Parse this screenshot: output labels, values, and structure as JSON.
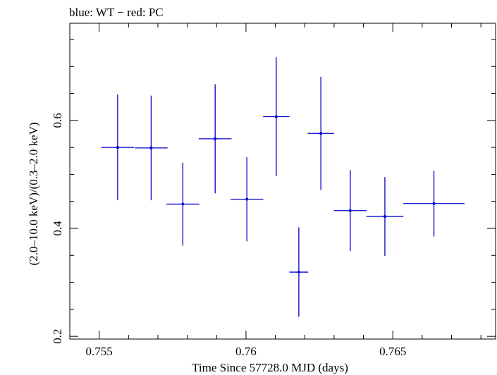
{
  "chart_data": {
    "type": "scatter",
    "title": "blue: WT − red: PC",
    "xlabel": "Time Since 57728.0 MJD (days)",
    "ylabel": "(2.0–10.0 keV)/(0.3–2.0 keV)",
    "xlim": [
      0.754,
      0.7685
    ],
    "ylim": [
      0.195,
      0.78
    ],
    "x_ticks": [
      0.755,
      0.76,
      0.765
    ],
    "x_tick_labels": [
      "0.755",
      "0.76",
      "0.765"
    ],
    "y_ticks": [
      0.2,
      0.4,
      0.6
    ],
    "y_tick_labels": [
      "0.2",
      "0.4",
      "0.6"
    ],
    "grid": false,
    "series": [
      {
        "color": "#0000cc",
        "points": [
          {
            "x": 0.75563,
            "y": 0.55,
            "xerr": 0.00056,
            "yerr_low": 0.098,
            "yerr_high": 0.098
          },
          {
            "x": 0.75677,
            "y": 0.549,
            "xerr": 0.00056,
            "yerr_low": 0.097,
            "yerr_high": 0.097
          },
          {
            "x": 0.75785,
            "y": 0.445,
            "xerr": 0.00056,
            "yerr_low": 0.077,
            "yerr_high": 0.077
          },
          {
            "x": 0.75895,
            "y": 0.566,
            "xerr": 0.00056,
            "yerr_low": 0.101,
            "yerr_high": 0.101
          },
          {
            "x": 0.76003,
            "y": 0.454,
            "xerr": 0.00056,
            "yerr_low": 0.078,
            "yerr_high": 0.078
          },
          {
            "x": 0.76103,
            "y": 0.607,
            "xerr": 0.00045,
            "yerr_low": 0.11,
            "yerr_high": 0.11
          },
          {
            "x": 0.7618,
            "y": 0.319,
            "xerr": 0.00032,
            "yerr_low": 0.083,
            "yerr_high": 0.083
          },
          {
            "x": 0.76255,
            "y": 0.576,
            "xerr": 0.00045,
            "yerr_low": 0.105,
            "yerr_high": 0.105
          },
          {
            "x": 0.76355,
            "y": 0.433,
            "xerr": 0.00056,
            "yerr_low": 0.075,
            "yerr_high": 0.075
          },
          {
            "x": 0.76473,
            "y": 0.422,
            "xerr": 0.00063,
            "yerr_low": 0.073,
            "yerr_high": 0.073
          },
          {
            "x": 0.7664,
            "y": 0.446,
            "xerr": 0.00104,
            "yerr_low": 0.061,
            "yerr_high": 0.061
          }
        ]
      }
    ]
  }
}
